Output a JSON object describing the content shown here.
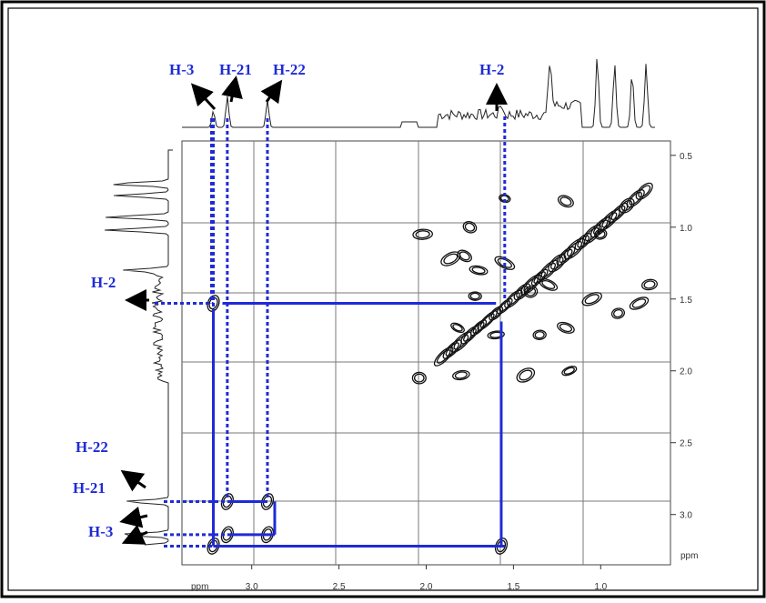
{
  "chart_data": {
    "type": "heatmap",
    "subtype": "2D COSY NMR contour plot",
    "xlabel": "ppm",
    "ylabel": "ppm",
    "xlim": [
      3.4,
      0.6
    ],
    "ylim": [
      0.4,
      3.35
    ],
    "x_ticks": [
      "3.0",
      "2.5",
      "2.0",
      "1.5",
      "1.0"
    ],
    "x_tick_values": [
      3.0,
      2.5,
      2.0,
      1.5,
      1.0
    ],
    "y_ticks": [
      "0.5",
      "1.0",
      "1.5",
      "2.0",
      "2.5",
      "3.0"
    ],
    "y_tick_values": [
      0.5,
      1.0,
      1.5,
      2.0,
      2.5,
      3.0
    ],
    "x_axis_unit_label": "ppm",
    "y_axis_unit_label": "ppm",
    "grid": true,
    "colors": {
      "annotation": "#1f2bd6",
      "arrow": "#000000",
      "contour": "#111111",
      "grid": "#7a7a7a"
    },
    "proton_labels": {
      "h3": "H-3",
      "h21": "H-21",
      "h22": "H-22",
      "h2": "H-2"
    },
    "proton_shifts": [
      {
        "label": "H-3",
        "ppm": 3.22
      },
      {
        "label": "H-21",
        "ppm": 3.14
      },
      {
        "label": "H-22",
        "ppm": 2.91
      },
      {
        "label": "H-2",
        "ppm": 1.55
      }
    ],
    "correlations": [
      {
        "x": 3.22,
        "y": 1.53,
        "from": "H-3",
        "to": "H-2"
      },
      {
        "x": 1.57,
        "y": 3.22,
        "from": "H-2",
        "to": "H-3"
      },
      {
        "x": 3.14,
        "y": 2.91,
        "from": "H-21",
        "to": "H-22"
      },
      {
        "x": 2.91,
        "y": 3.14,
        "from": "H-22",
        "to": "H-21"
      }
    ],
    "diagonal_peaks": [
      {
        "x": 3.22,
        "y": 3.22
      },
      {
        "x": 3.14,
        "y": 3.14
      },
      {
        "x": 2.91,
        "y": 2.91
      }
    ]
  }
}
